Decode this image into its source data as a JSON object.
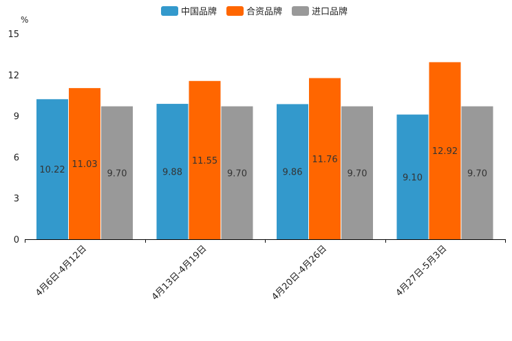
{
  "chart_data": {
    "type": "bar",
    "title": "",
    "xlabel": "",
    "ylabel": "%",
    "ylim": [
      0,
      15
    ],
    "yticks": [
      0,
      3,
      6,
      9,
      12,
      15
    ],
    "ytick_labels": [
      "0",
      "3",
      "6",
      "9",
      "12",
      "15"
    ],
    "grid": false,
    "legend_position": "top-center",
    "categories": [
      "4月6日-4月12日",
      "4月13日-4月19日",
      "4月20日-4月26日",
      "4月27日-5月3日"
    ],
    "series": [
      {
        "name": "中国品牌",
        "color": "#3399cc",
        "values": [
          10.22,
          9.88,
          9.86,
          9.1
        ],
        "labels": [
          "10.22",
          "9.88",
          "9.86",
          "9.10"
        ]
      },
      {
        "name": "合资品牌",
        "color": "#ff6600",
        "values": [
          11.03,
          11.55,
          11.76,
          12.92
        ],
        "labels": [
          "11.03",
          "11.55",
          "11.76",
          "12.92"
        ]
      },
      {
        "name": "进口品牌",
        "color": "#999999",
        "values": [
          9.7,
          9.7,
          9.7,
          9.7
        ],
        "labels": [
          "9.70",
          "9.70",
          "9.70",
          "9.70"
        ]
      }
    ]
  }
}
